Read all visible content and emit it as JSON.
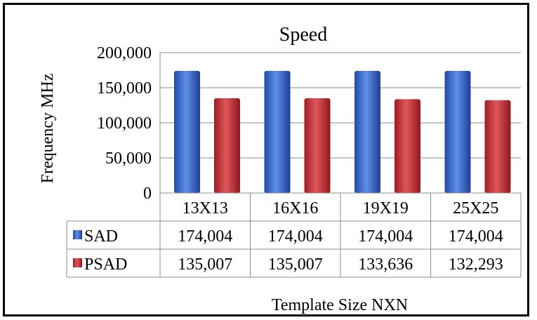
{
  "chart_data": {
    "type": "bar",
    "title": "Speed",
    "xlabel": "Template Size NXN",
    "ylabel": "Frequency MHz",
    "categories": [
      "13X13",
      "16X16",
      "19X19",
      "25X25"
    ],
    "ylim": [
      0,
      200000
    ],
    "yticks": [
      "0",
      "50,000",
      "100,000",
      "150,000",
      "200,000"
    ],
    "grid": true,
    "legend": "data-table",
    "series": [
      {
        "name": "SAD",
        "color": "#2e5fc7",
        "values": [
          174004,
          174004,
          174004,
          174004
        ],
        "labels": [
          "174,004",
          "174,004",
          "174,004",
          "174,004"
        ]
      },
      {
        "name": "PSAD",
        "color": "#c0282e",
        "values": [
          135007,
          135007,
          133636,
          132293
        ],
        "labels": [
          "135,007",
          "135,007",
          "133,636",
          "132,293"
        ]
      }
    ]
  }
}
